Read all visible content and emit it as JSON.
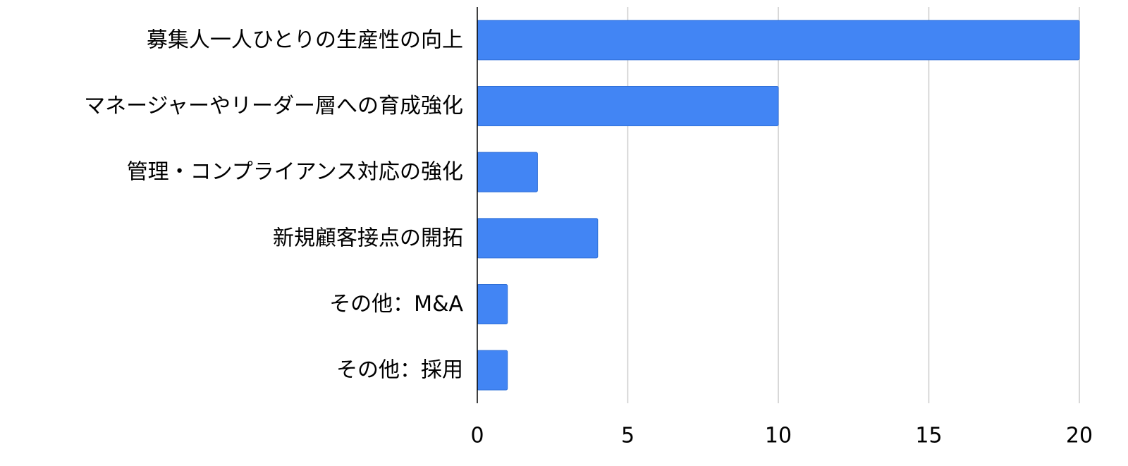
{
  "chart_data": {
    "type": "bar",
    "orientation": "horizontal",
    "categories": [
      "募集人一人ひとりの生産性の向上",
      "マネージャーやリーダー層への育成強化",
      "管理・コンプライアンス対応の強化",
      "新規顧客接点の開拓",
      "その他：M&A",
      "その他：採用"
    ],
    "values": [
      20,
      10,
      2,
      4,
      1,
      1
    ],
    "xlim": [
      0,
      20
    ],
    "xticks": [
      0,
      5,
      10,
      15,
      20
    ],
    "grid": true,
    "legend": "none",
    "colors": {
      "bar": "#4285f4",
      "bar_stroke": "#2f6fd6",
      "grid": "#cccccc",
      "axis": "#000000"
    }
  }
}
